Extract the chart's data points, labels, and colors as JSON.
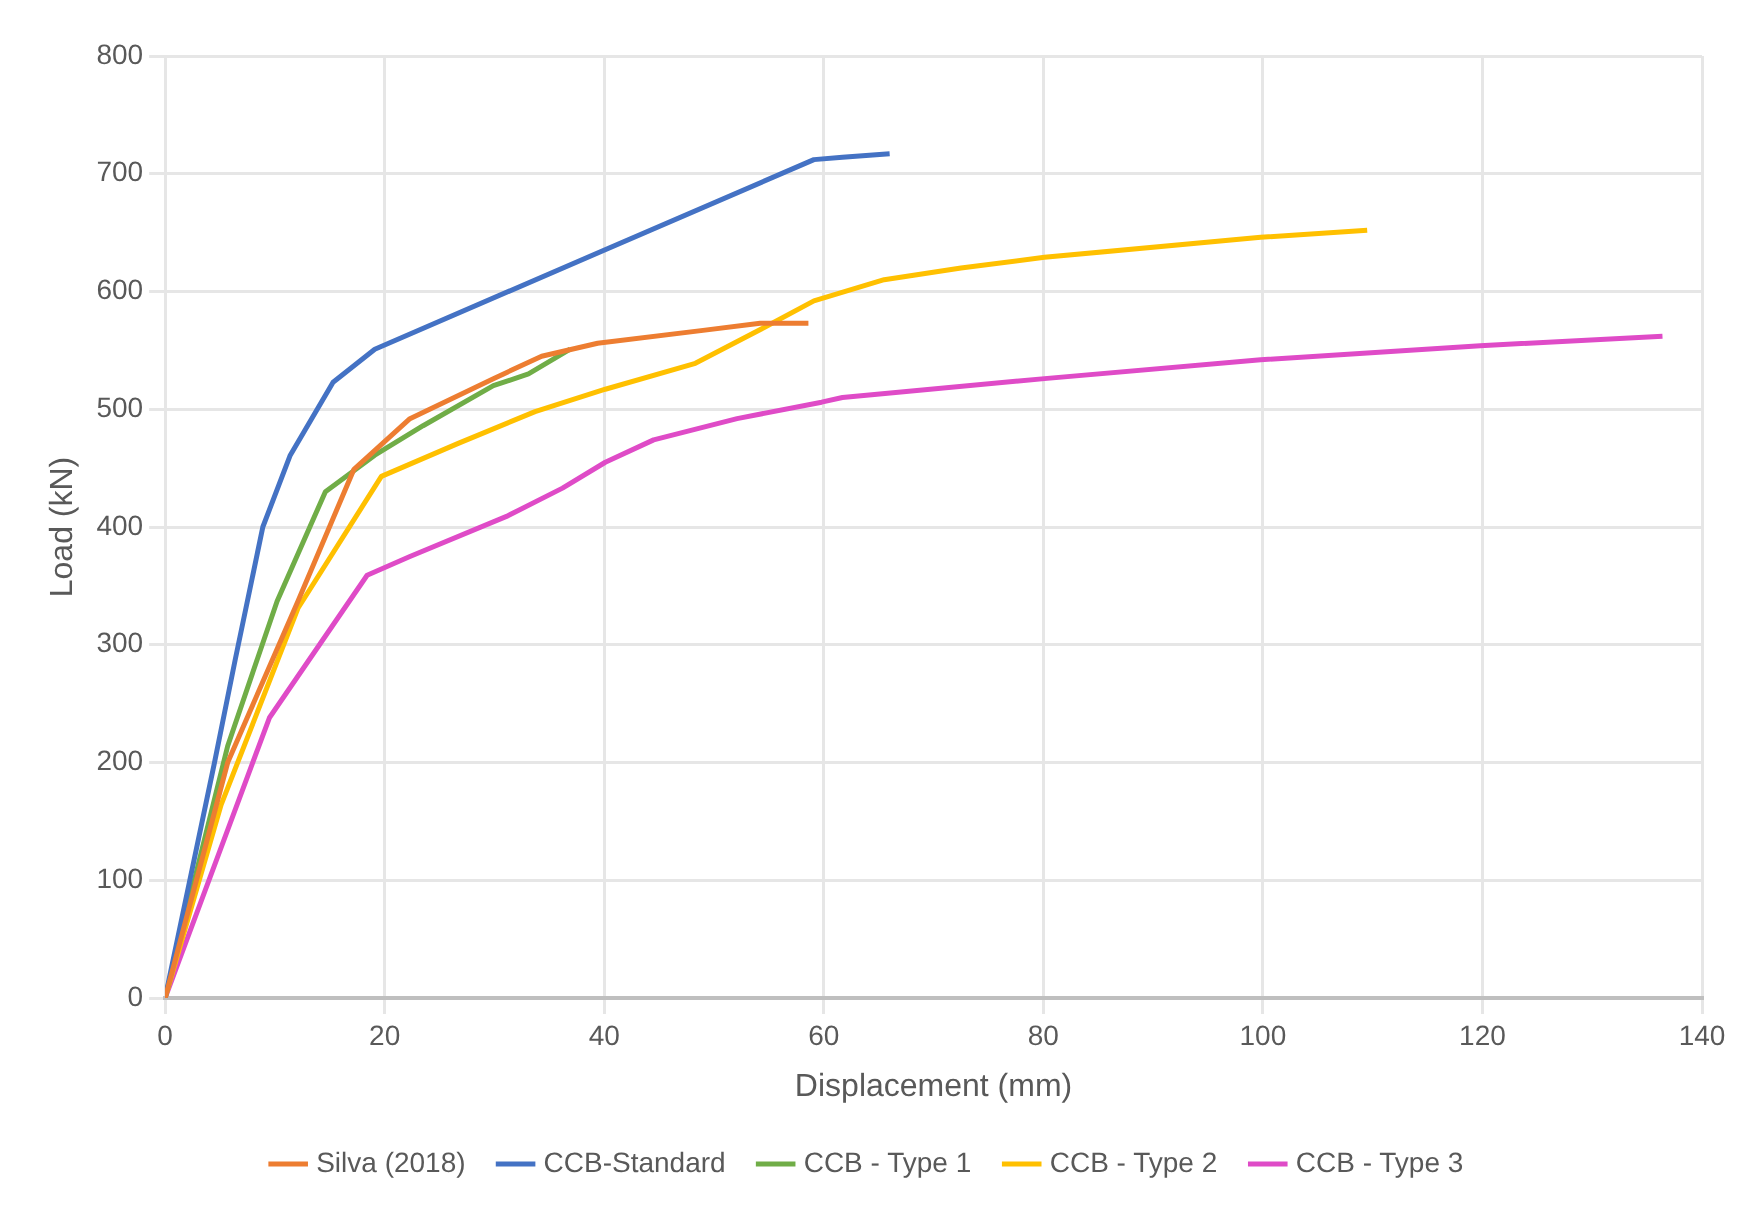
{
  "chart_data": {
    "type": "line",
    "xlabel": "Displacement (mm)",
    "ylabel": "Load (kN)",
    "xlim": [
      0,
      140
    ],
    "xticks": [
      0,
      20,
      40,
      60,
      80,
      100,
      120,
      140
    ],
    "ylim": [
      0,
      800
    ],
    "yticks": [
      0,
      100,
      200,
      300,
      400,
      500,
      600,
      700,
      800
    ],
    "grid": true,
    "legend": "bottom",
    "marker": "none",
    "line_style": "solid",
    "series": [
      {
        "name": "Silva (2018)",
        "color": "#ed7d31",
        "x": [
          0,
          5.7,
          12.1,
          17.2,
          22.3,
          29.9,
          34.3,
          39.4,
          49,
          54.2,
          58.6
        ],
        "values": [
          0,
          200,
          337,
          449,
          492,
          526,
          545,
          556,
          567,
          573,
          573
        ]
      },
      {
        "name": "CCB-Standard",
        "color": "#4472c4",
        "x": [
          0,
          4.5,
          6.4,
          8.9,
          11.4,
          15.3,
          19.1,
          59.1,
          61.7,
          66
        ],
        "values": [
          0,
          200,
          288,
          400,
          461,
          523,
          551,
          712,
          714,
          717
        ]
      },
      {
        "name": "CCB - Type 1",
        "color": "#70ad47",
        "x": [
          0,
          5.7,
          10.2,
          14.6,
          19.1,
          23.5,
          29.9,
          33.1,
          36.9
        ],
        "values": [
          0,
          214,
          337,
          430,
          461,
          486,
          520,
          530,
          551
        ]
      },
      {
        "name": "CCB - Type 2",
        "color": "#ffc000",
        "x": [
          0,
          5.1,
          12.1,
          19.7,
          26.7,
          33.7,
          40.1,
          48.3,
          54.7,
          59.1,
          65.5,
          72.5,
          80.1,
          99.8,
          109.5
        ],
        "values": [
          0,
          164,
          331,
          443,
          471,
          498,
          517,
          539,
          570,
          592,
          610,
          620,
          629,
          646,
          652
        ]
      },
      {
        "name": "CCB - Type 3",
        "color": "#df4bc7",
        "x": [
          0,
          9.5,
          18.4,
          22.3,
          31.1,
          36.2,
          40.1,
          44.5,
          52.1,
          59.8,
          61.7,
          80.1,
          99.8,
          119.8,
          136.4
        ],
        "values": [
          0,
          238,
          359,
          375,
          409,
          433,
          455,
          474,
          492,
          506,
          510,
          526,
          542,
          554,
          562
        ]
      }
    ]
  }
}
